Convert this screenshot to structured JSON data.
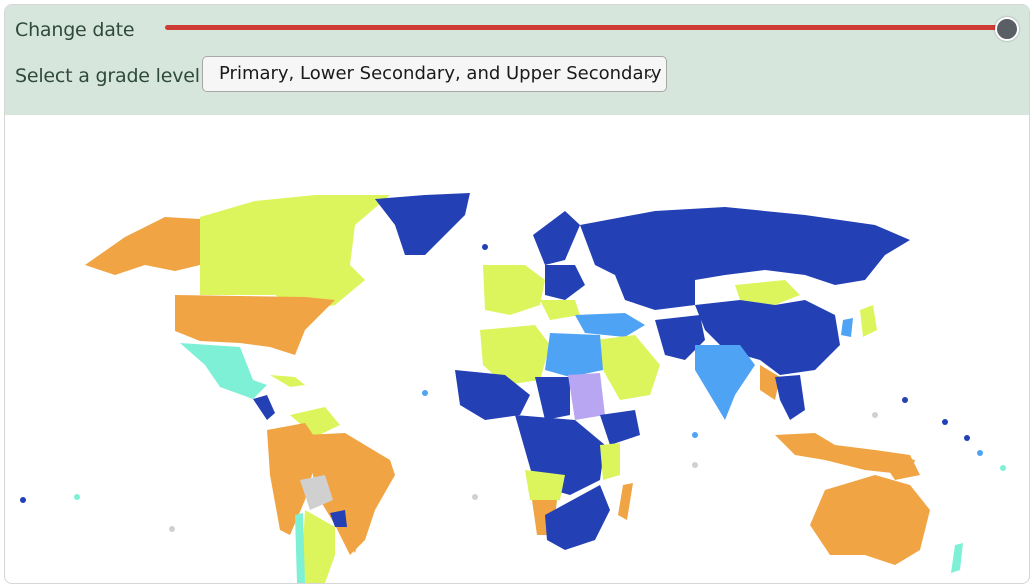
{
  "controls": {
    "date_label": "Change date",
    "grade_label": "Select a grade level",
    "grade_selected": "Primary, Lower Secondary, and Upper Secondary",
    "slider_value": 1.0,
    "slider_color": "#cf3b35",
    "thumb_color": "#5a5e65"
  },
  "palette": {
    "panel_bg": "#d7e6dd",
    "dark_blue": "#2340b5",
    "light_blue": "#4fa3f5",
    "yellow_green": "#dcf55c",
    "orange": "#f0a443",
    "aqua": "#7ef0d6",
    "lavender": "#b9a6f2",
    "gray": "#d0d0d0"
  },
  "icons": {
    "select_chevron": "chevron-down-icon"
  }
}
